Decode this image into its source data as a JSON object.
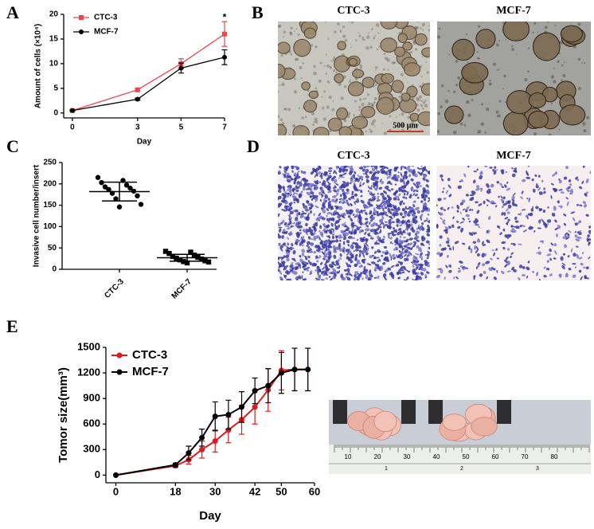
{
  "figure": {
    "panel_labels": [
      "A",
      "B",
      "C",
      "D",
      "E"
    ],
    "panel_b": {
      "titles": [
        "CTC-3",
        "MCF-7"
      ],
      "scale_bar": "500 μm"
    },
    "panel_d": {
      "titles": [
        "CTC-3",
        "MCF-7"
      ]
    },
    "panel_e_photo": {
      "ruler_labels": [
        "10",
        "20",
        "30",
        "40",
        "50",
        "60",
        "70",
        "80"
      ],
      "ruler_inch_labels": [
        "1",
        "2",
        "3"
      ]
    }
  },
  "chart_data": [
    {
      "type": "line",
      "x": [
        0,
        3,
        5,
        7
      ],
      "xlim": [
        -0.4,
        7
      ],
      "xticks": [
        0,
        3,
        5,
        7
      ],
      "ylim": [
        -1,
        20
      ],
      "yticks": [
        0,
        5,
        10,
        15,
        20
      ],
      "x_label": "Day",
      "y_label": "Amount of cells (×10⁴)",
      "annotation": "*",
      "legend": "upper left",
      "series": [
        {
          "name": "CTC-3",
          "color": "#e8474f",
          "marker": "square",
          "values": [
            0.5,
            4.7,
            10,
            16
          ],
          "errors": [
            0.1,
            0.3,
            1,
            2.5
          ]
        },
        {
          "name": "MCF-7",
          "color": "#000000",
          "marker": "circle",
          "values": [
            0.5,
            2.8,
            9.1,
            11.3
          ],
          "errors": [
            0.1,
            0.2,
            1,
            1.5
          ]
        }
      ]
    },
    {
      "type": "dotplot",
      "categories": [
        "CTC-3",
        "MCF-7"
      ],
      "ylim": [
        0,
        250
      ],
      "yticks": [
        0,
        50,
        100,
        150,
        200,
        250
      ],
      "y_label": "Invasive cell number/insert",
      "markers": [
        "circle",
        "square"
      ],
      "color": "#000000",
      "points": [
        [
          215,
          208,
          203,
          197,
          193,
          190,
          187,
          183,
          178,
          172,
          165,
          152,
          146
        ],
        [
          42,
          40,
          37,
          33,
          30,
          28,
          26,
          24,
          22,
          20,
          18,
          17,
          15
        ]
      ],
      "means": [
        182,
        27
      ],
      "sds": [
        22,
        8
      ]
    },
    {
      "type": "line",
      "x": [
        0,
        18,
        22,
        26,
        30,
        34,
        38,
        42,
        46,
        50,
        54,
        58
      ],
      "xlim": [
        -3,
        60
      ],
      "xticks": [
        0,
        18,
        30,
        42,
        50,
        60
      ],
      "ylim": [
        -90,
        1500
      ],
      "yticks": [
        0,
        300,
        600,
        900,
        1200,
        1500
      ],
      "x_label": "Day",
      "y_label": "Tomor size(mm³)",
      "legend": "upper left",
      "series": [
        {
          "name": "CTC-3",
          "color": "#e0191e",
          "marker": "circle",
          "values": [
            0,
            110,
            180,
            300,
            400,
            530,
            650,
            800,
            1000,
            1230,
            1240,
            1240
          ],
          "errors": [
            0,
            20,
            50,
            100,
            130,
            150,
            170,
            200,
            250,
            230,
            250,
            250
          ]
        },
        {
          "name": "MCF-7",
          "color": "#000000",
          "marker": "circle",
          "values": [
            0,
            120,
            260,
            440,
            690,
            710,
            800,
            990,
            1050,
            1200,
            1240,
            1240
          ],
          "errors": [
            0,
            20,
            80,
            100,
            170,
            170,
            180,
            150,
            200,
            240,
            250,
            250
          ]
        }
      ]
    }
  ]
}
